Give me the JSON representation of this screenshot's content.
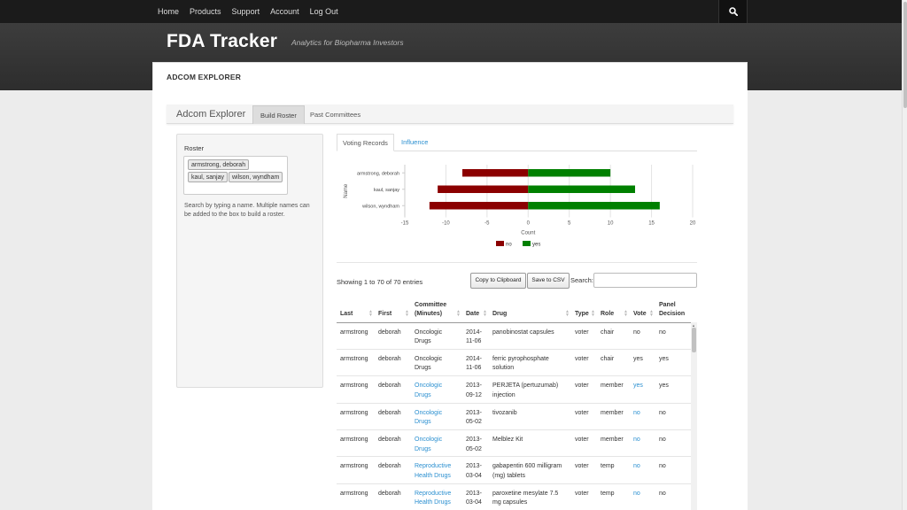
{
  "nav": {
    "items": [
      "Home",
      "Products",
      "Support",
      "Account",
      "Log Out"
    ]
  },
  "brand": {
    "title": "FDA Tracker",
    "subtitle": "Analytics for Biopharma Investors"
  },
  "section": {
    "title": "ADCOM EXPLORER"
  },
  "tabs": {
    "app_title": "Adcom Explorer",
    "items": [
      {
        "label": "Build Roster",
        "active": true
      },
      {
        "label": "Past Committees",
        "active": false
      }
    ]
  },
  "roster": {
    "label": "Roster",
    "chips": [
      "armstrong, deborah",
      "kaul, sanjay",
      "wilson, wyndham"
    ],
    "help": "Search by typing a name. Multiple names can be added to the box to build a roster."
  },
  "chart_tabs": {
    "items": [
      {
        "label": "Voting Records",
        "active": true
      },
      {
        "label": "Influence",
        "active": false
      }
    ]
  },
  "chart_data": {
    "type": "bar",
    "orientation": "horizontal",
    "stacked": "diverging",
    "categories": [
      "armstrong, deborah",
      "kaul, sanjay",
      "wilson, wyndham"
    ],
    "series": [
      {
        "name": "no",
        "color": "#8b0000",
        "values": [
          -8,
          -11,
          -12
        ]
      },
      {
        "name": "yes",
        "color": "#008000",
        "values": [
          10,
          13,
          16
        ]
      }
    ],
    "xlabel": "Count",
    "ylabel": "Name",
    "xlim": [
      -15,
      20
    ],
    "xticks": [
      -15,
      -10,
      -5,
      0,
      5,
      10,
      15,
      20
    ],
    "grid": true,
    "legend": "bottom"
  },
  "table": {
    "info": "Showing 1 to 70 of 70 entries",
    "buttons": {
      "copy": "Copy to Clipboard",
      "csv": "Save to CSV"
    },
    "search_label": "Search:",
    "search_value": "",
    "columns": [
      "Last",
      "First",
      "Committee (Minutes)",
      "Date",
      "Drug",
      "Type",
      "Role",
      "Vote",
      "Panel Decision"
    ],
    "rows": [
      {
        "last": "armstrong",
        "first": "deborah",
        "committee": "Oncologic Drugs",
        "committee_link": false,
        "date": "2014-11-06",
        "drug": "panobinostat capsules",
        "type": "voter",
        "role": "chair",
        "vote": "no",
        "vote_link": false,
        "decision": "no"
      },
      {
        "last": "armstrong",
        "first": "deborah",
        "committee": "Oncologic Drugs",
        "committee_link": false,
        "date": "2014-11-06",
        "drug": "ferric pyrophosphate solution",
        "type": "voter",
        "role": "chair",
        "vote": "yes",
        "vote_link": false,
        "decision": "yes"
      },
      {
        "last": "armstrong",
        "first": "deborah",
        "committee": "Oncologic Drugs",
        "committee_link": true,
        "date": "2013-09-12",
        "drug": "PERJETA (pertuzumab) injection",
        "type": "voter",
        "role": "member",
        "vote": "yes",
        "vote_link": true,
        "decision": "yes"
      },
      {
        "last": "armstrong",
        "first": "deborah",
        "committee": "Oncologic Drugs",
        "committee_link": true,
        "date": "2013-05-02",
        "drug": "tivozanib",
        "type": "voter",
        "role": "member",
        "vote": "no",
        "vote_link": true,
        "decision": "no"
      },
      {
        "last": "armstrong",
        "first": "deborah",
        "committee": "Oncologic Drugs",
        "committee_link": true,
        "date": "2013-05-02",
        "drug": "Melblez Kit",
        "type": "voter",
        "role": "member",
        "vote": "no",
        "vote_link": true,
        "decision": "no"
      },
      {
        "last": "armstrong",
        "first": "deborah",
        "committee": "Reproductive Health Drugs",
        "committee_link": true,
        "date": "2013-03-04",
        "drug": "gabapentin 600 milligram (mg) tablets",
        "type": "voter",
        "role": "temp",
        "vote": "no",
        "vote_link": true,
        "decision": "no"
      },
      {
        "last": "armstrong",
        "first": "deborah",
        "committee": "Reproductive Health Drugs",
        "committee_link": true,
        "date": "2013-03-04",
        "drug": "paroxetine mesylate 7.5 mg capsules",
        "type": "voter",
        "role": "temp",
        "vote": "no",
        "vote_link": true,
        "decision": "no"
      }
    ]
  }
}
